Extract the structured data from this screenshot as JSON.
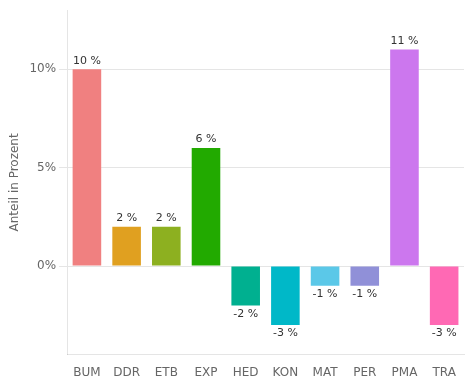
{
  "chart_data": {
    "type": "bar",
    "categories": [
      "BUM",
      "DDR",
      "ETB",
      "EXP",
      "HED",
      "KON",
      "MAT",
      "PER",
      "PMA",
      "TRA"
    ],
    "values": [
      10,
      2,
      2,
      6,
      -2,
      -3,
      -1,
      -1,
      11,
      -3
    ],
    "value_labels": [
      "10 %",
      "2 %",
      "2 %",
      "6 %",
      "-2 %",
      "-3 %",
      "-1 %",
      "-1 %",
      "11 %",
      "-3 %"
    ],
    "data_labels": true,
    "colors": [
      "#F08080",
      "#E0A020",
      "#8DB020",
      "#22AA00",
      "#00B090",
      "#00B8C8",
      "#5BC8E8",
      "#9090D8",
      "#CC77EE",
      "#FF69B4"
    ],
    "ylabel": "Anteil in Prozent",
    "ylim": [
      -4.5,
      13.0
    ],
    "yticks": [
      {
        "value": 0,
        "label": "0%"
      },
      {
        "value": 5,
        "label": "5%"
      },
      {
        "value": 10,
        "label": "10%"
      }
    ],
    "grid": true
  }
}
